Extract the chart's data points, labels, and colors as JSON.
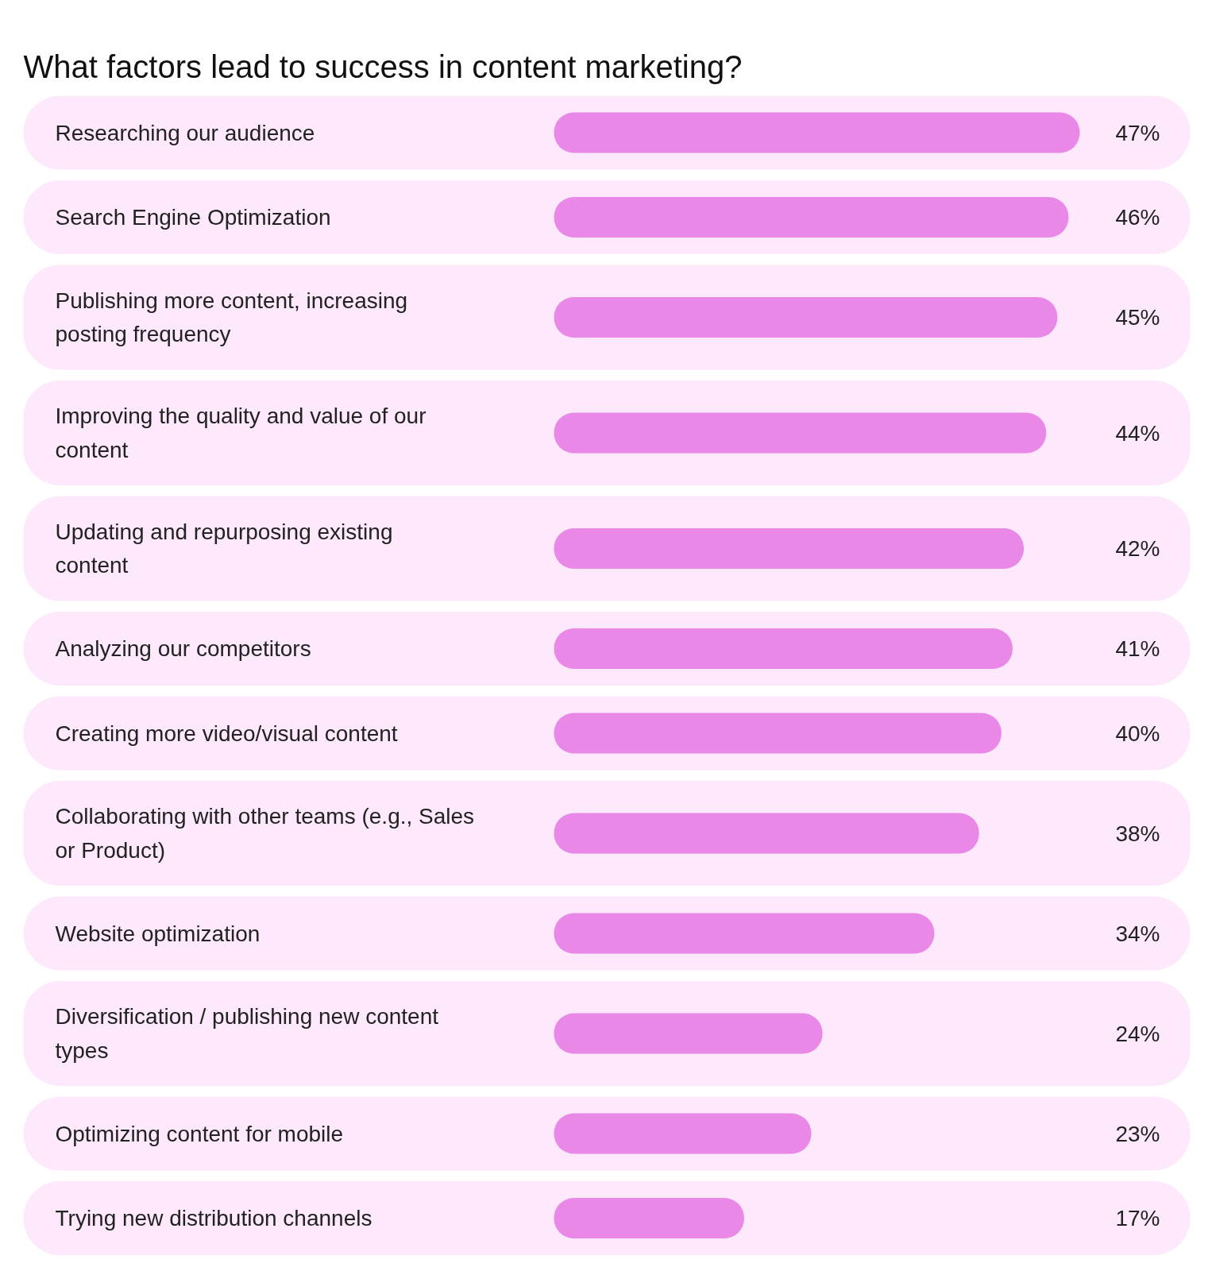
{
  "chart_data": {
    "type": "bar",
    "orientation": "horizontal",
    "title": "What factors lead to success in content marketing?",
    "categories": [
      "Researching our audience",
      "Search Engine Optimization",
      "Publishing more content, increasing\nposting frequency",
      "Improving the quality and value of our\ncontent",
      "Updating and repurposing existing\ncontent",
      "Analyzing our competitors",
      "Creating more video/visual content",
      "Collaborating with other teams (e.g., Sales\nor Product)",
      "Website optimization",
      "Diversification / publishing new content\ntypes",
      "Optimizing content for mobile",
      "Trying new distribution channels"
    ],
    "values": [
      47,
      46,
      45,
      44,
      42,
      41,
      40,
      38,
      34,
      24,
      23,
      17
    ],
    "value_labels": [
      "47%",
      "46%",
      "45%",
      "44%",
      "42%",
      "41%",
      "40%",
      "38%",
      "34%",
      "24%",
      "23%",
      "17%"
    ],
    "color": "#ea88e8"
  }
}
